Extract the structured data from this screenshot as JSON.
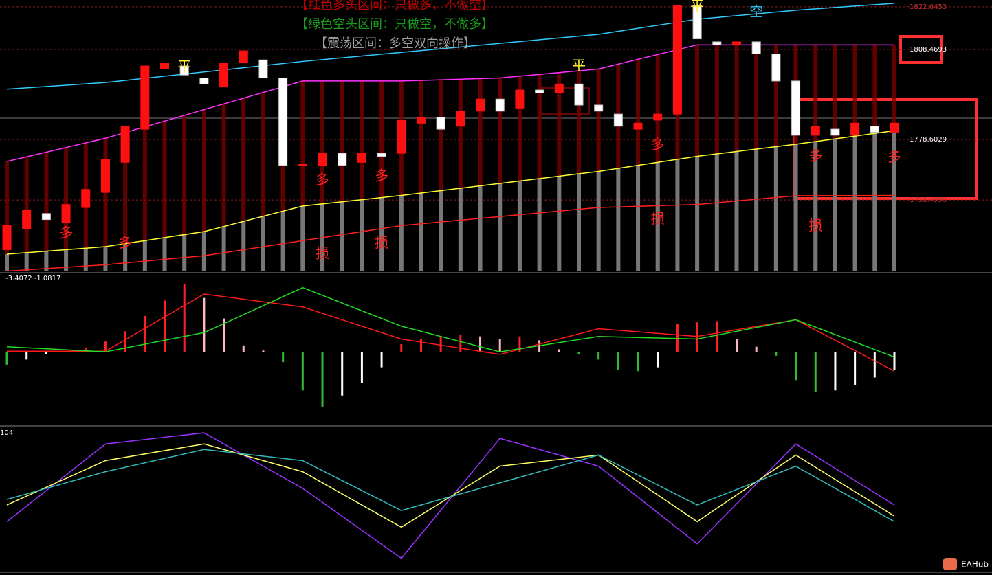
{
  "chart_data": [
    {
      "type": "candlestick",
      "legend_notes": [
        "【红色多头区间：只做多，不做空】",
        "【绿色空头区间：只做空，不做多】",
        "【震荡区间：多空双向操作】"
      ],
      "legend_colors": [
        "#c00000",
        "#1a9a1a",
        "#a0a0a0"
      ],
      "up_color": "#ff1010",
      "down_color": "#ffffff",
      "open": [
        1742,
        1749,
        1754,
        1751,
        1756,
        1761,
        1771,
        1782,
        1802,
        1803,
        1799,
        1796,
        1804,
        1805,
        1799,
        1770,
        1770,
        1774,
        1771,
        1774,
        1774,
        1784,
        1786,
        1783,
        1788,
        1792,
        1789,
        1795,
        1794,
        1797,
        1790,
        1787,
        1782,
        1785,
        1787,
        1823,
        1811,
        1810,
        1811,
        1807,
        1798,
        1780,
        1782,
        1780,
        1783,
        1781
      ],
      "close": [
        1750,
        1755,
        1752,
        1757,
        1762,
        1772,
        1783,
        1803,
        1804,
        1800,
        1797,
        1804,
        1808,
        1799,
        1770,
        1770.5,
        1774,
        1770,
        1774,
        1773,
        1785,
        1786,
        1782,
        1788,
        1792,
        1788,
        1795,
        1794,
        1797,
        1790,
        1788,
        1783,
        1784,
        1787,
        1823,
        1812,
        1810,
        1811,
        1807,
        1798,
        1780,
        1783,
        1780,
        1784,
        1781,
        1784
      ],
      "ylim": [
        1734.8,
        1824.9
      ],
      "yticks": [
        1822.6453,
        1808.4693,
        1778.6029,
        1758.4996
      ],
      "series": [
        {
          "color": "#33ccff",
          "values": [
            1795.3,
            1797.5,
            1801.0,
            1804.5,
            1807.5,
            1810.5,
            1813.5,
            1818.5,
            1821.5,
            1823.8
          ]
        },
        {
          "color": "#ff33ff",
          "values": [
            1771.3,
            1779,
            1788.5,
            1798,
            1798,
            1799,
            1802,
            1810,
            1810,
            1810
          ]
        },
        {
          "color": "#ffff33",
          "values": [
            1740.5,
            1743,
            1748,
            1756.5,
            1760,
            1764,
            1768,
            1773,
            1777,
            1781.5
          ]
        },
        {
          "color": "#ff2020",
          "values": [
            1734.9,
            1737,
            1740,
            1745,
            1750,
            1753,
            1756,
            1757,
            1759.9,
            1760
          ]
        }
      ],
      "annotations": [
        {
          "text": "多",
          "index": 3,
          "price": 1747.4
        },
        {
          "text": "多",
          "index": 6,
          "price": 1744
        },
        {
          "text": "损",
          "index": 16,
          "price": 1740.5
        },
        {
          "text": "多",
          "index": 16,
          "price": 1765
        },
        {
          "text": "多",
          "index": 19,
          "price": 1766.3
        },
        {
          "text": "损",
          "index": 19,
          "price": 1744
        },
        {
          "text": "损",
          "index": 33,
          "price": 1752
        },
        {
          "text": "多",
          "index": 33,
          "price": 1776.6
        },
        {
          "text": "多",
          "index": 41,
          "price": 1772.9
        },
        {
          "text": "损",
          "index": 41,
          "price": 1749.7
        },
        {
          "text": "多",
          "index": 45,
          "price": 1772.5
        },
        {
          "text": "平",
          "index": 9,
          "price": 1802.6
        },
        {
          "text": "平",
          "index": 29,
          "price": 1802.9
        },
        {
          "text": "平",
          "index": 35,
          "price": 1822.6
        },
        {
          "text": "空",
          "index": 38,
          "price": 1820.8
        }
      ]
    },
    {
      "type": "macd",
      "header": "-3.4072 -1.0817",
      "histogram": [
        -1.0,
        -0.6,
        -0.2,
        0.1,
        0.3,
        0.8,
        1.6,
        2.8,
        4.0,
        5.3,
        4.2,
        2.6,
        0.5,
        0.1,
        -0.8,
        -3.0,
        -4.3,
        -3.4,
        -2.4,
        -1.2,
        0.6,
        1.0,
        1.2,
        1.3,
        1.2,
        1.0,
        1.2,
        0.9,
        0.2,
        -0.2,
        -0.6,
        -1.4,
        -1.5,
        -1.2,
        2.2,
        2.3,
        2.4,
        1.0,
        0.4,
        -0.3,
        -2.2,
        -3.1,
        -3.0,
        -2.6,
        -2.0,
        -1.4
      ],
      "series": [
        {
          "color": "#ff1a1a",
          "values": [
            0.05,
            0.05,
            4.5,
            3.5,
            1.0,
            -0.2,
            1.8,
            1.2,
            2.5,
            -1.5
          ]
        },
        {
          "color": "#22dd22",
          "values": [
            0.4,
            0,
            1.5,
            5.0,
            2.0,
            0,
            1.2,
            1.0,
            2.5,
            -0.4
          ]
        }
      ],
      "ylim": [
        -5.5,
        6
      ]
    },
    {
      "type": "kdj",
      "header": "104",
      "series": [
        {
          "color": "#9933ff",
          "values": [
            25,
            95,
            105,
            55,
            -8,
            100,
            75,
            5,
            95,
            40
          ]
        },
        {
          "color": "#ffff66",
          "values": [
            40,
            80,
            95,
            70,
            20,
            75,
            85,
            25,
            85,
            30
          ]
        },
        {
          "color": "#33bbbb",
          "values": [
            45,
            70,
            90,
            80,
            35,
            60,
            85,
            40,
            75,
            25
          ]
        }
      ],
      "ylim": [
        -20,
        110
      ]
    }
  ],
  "watermark": "EAHub"
}
